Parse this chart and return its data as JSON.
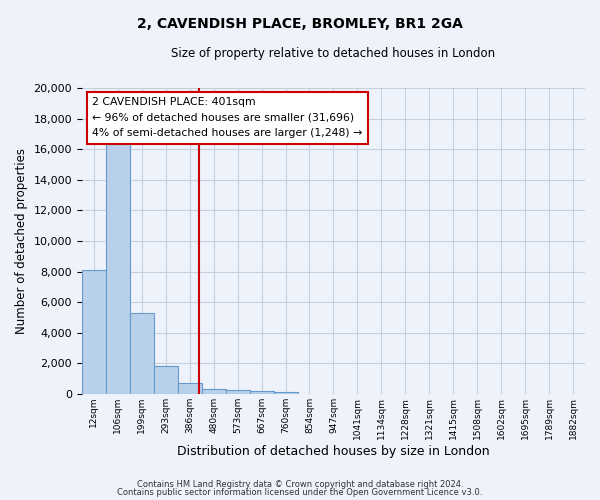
{
  "title": "2, CAVENDISH PLACE, BROMLEY, BR1 2GA",
  "subtitle": "Size of property relative to detached houses in London",
  "xlabel": "Distribution of detached houses by size in London",
  "ylabel": "Number of detached properties",
  "bar_values": [
    8100,
    16600,
    5300,
    1850,
    750,
    330,
    250,
    200,
    150
  ],
  "all_labels": [
    "12sqm",
    "106sqm",
    "199sqm",
    "293sqm",
    "386sqm",
    "480sqm",
    "573sqm",
    "667sqm",
    "760sqm",
    "854sqm",
    "947sqm",
    "1041sqm",
    "1134sqm",
    "1228sqm",
    "1321sqm",
    "1415sqm",
    "1508sqm",
    "1602sqm",
    "1695sqm",
    "1789sqm",
    "1882sqm"
  ],
  "bar_color": "#b8d0ea",
  "bar_edgecolor": "#6699cc",
  "vline_x": 4.38,
  "vline_color": "#cc0000",
  "ylim": [
    0,
    20000
  ],
  "yticks": [
    0,
    2000,
    4000,
    6000,
    8000,
    10000,
    12000,
    14000,
    16000,
    18000,
    20000
  ],
  "annotation_title": "2 CAVENDISH PLACE: 401sqm",
  "annotation_line1": "← 96% of detached houses are smaller (31,696)",
  "annotation_line2": "4% of semi-detached houses are larger (1,248) →",
  "annotation_box_color": "#cc0000",
  "footer_line1": "Contains HM Land Registry data © Crown copyright and database right 2024.",
  "footer_line2": "Contains public sector information licensed under the Open Government Licence v3.0.",
  "bg_color": "#eef2fb",
  "grid_color": "#c8cfe0"
}
